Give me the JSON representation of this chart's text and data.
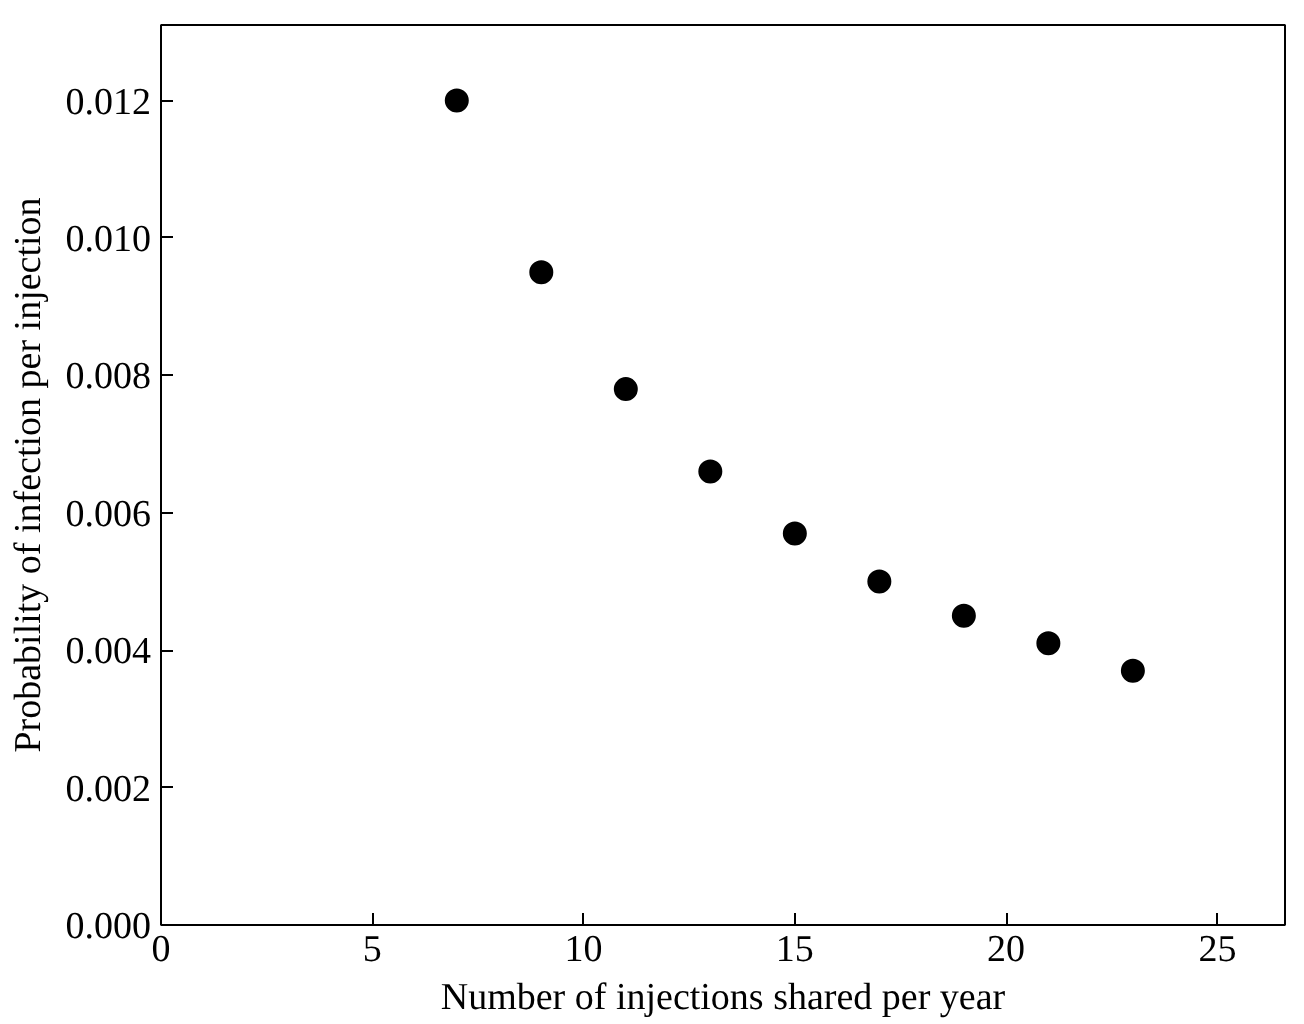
{
  "chart_data": {
    "type": "scatter",
    "xlabel": "Number of injections shared per year",
    "ylabel": "Probability of infection per injection",
    "x": [
      7,
      9,
      11,
      13,
      15,
      17,
      19,
      21,
      23
    ],
    "series": [
      {
        "color": "#000000",
        "values": [
          0.012,
          0.0095,
          0.0078,
          0.0066,
          0.0057,
          0.005,
          0.0045,
          0.0041,
          0.0037
        ]
      }
    ],
    "xlim": [
      0,
      26.6
    ],
    "ylim": [
      0,
      0.0131
    ],
    "xticks": [
      0,
      5,
      10,
      15,
      20,
      25
    ],
    "yticks": [
      {
        "value": 0,
        "label": "0.000"
      },
      {
        "value": 0.002,
        "label": "0.002"
      },
      {
        "value": 0.004,
        "label": "0.004"
      },
      {
        "value": 0.006,
        "label": "0.006"
      },
      {
        "value": 0.008,
        "label": "0.008"
      },
      {
        "value": 0.01,
        "label": "0.010"
      },
      {
        "value": 0.012,
        "label": "0.012"
      }
    ],
    "marker": "circle"
  }
}
